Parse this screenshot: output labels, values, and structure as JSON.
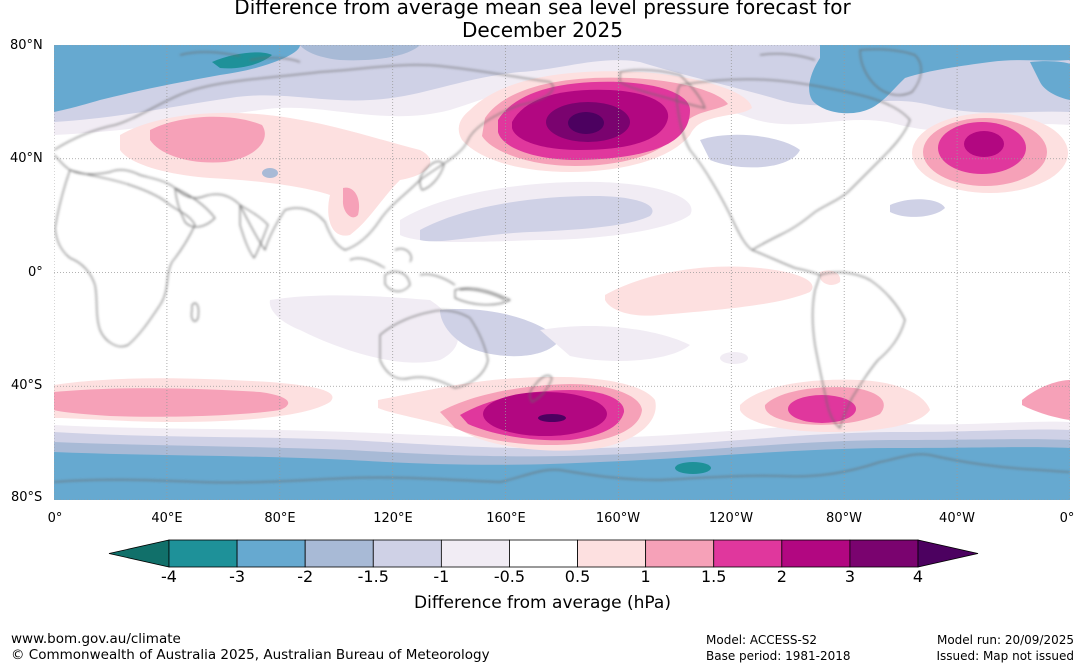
{
  "title": {
    "line1": "Difference from average mean sea level pressure forecast for",
    "line2": "December 2025"
  },
  "lat_labels": [
    "80°N",
    "40°N",
    "0°",
    "40°S",
    "80°S"
  ],
  "lon_labels": [
    "0°",
    "40°E",
    "80°E",
    "120°E",
    "160°E",
    "160°W",
    "120°W",
    "80°W",
    "40°W",
    "0°"
  ],
  "legend": {
    "ticks": [
      "-4",
      "-3",
      "-2",
      "-1.5",
      "-1",
      "-0.5",
      "0.5",
      "1",
      "1.5",
      "2",
      "3",
      "4"
    ],
    "colors": [
      "#11706a",
      "#1e9199",
      "#66a9d0",
      "#a8bad6",
      "#cfd1e6",
      "#f1ecf4",
      "#ffffff",
      "#fde0e0",
      "#f6a1b8",
      "#e0379d",
      "#b20781",
      "#7a036f",
      "#4c0160"
    ],
    "label": "Difference from average (hPa)"
  },
  "footer": {
    "url": "www.bom.gov.au/climate",
    "copyright": "© Commonwealth of Australia 2025, Australian Bureau of Meteorology",
    "model": "Model: ACCESS-S2",
    "base_period": "Base period: 1981-2018",
    "model_run": "Model run: 20/09/2025",
    "issued": "Issued: Map not issued"
  },
  "colors": {
    "grid": "#999999",
    "coast": "#6b6b6b"
  }
}
